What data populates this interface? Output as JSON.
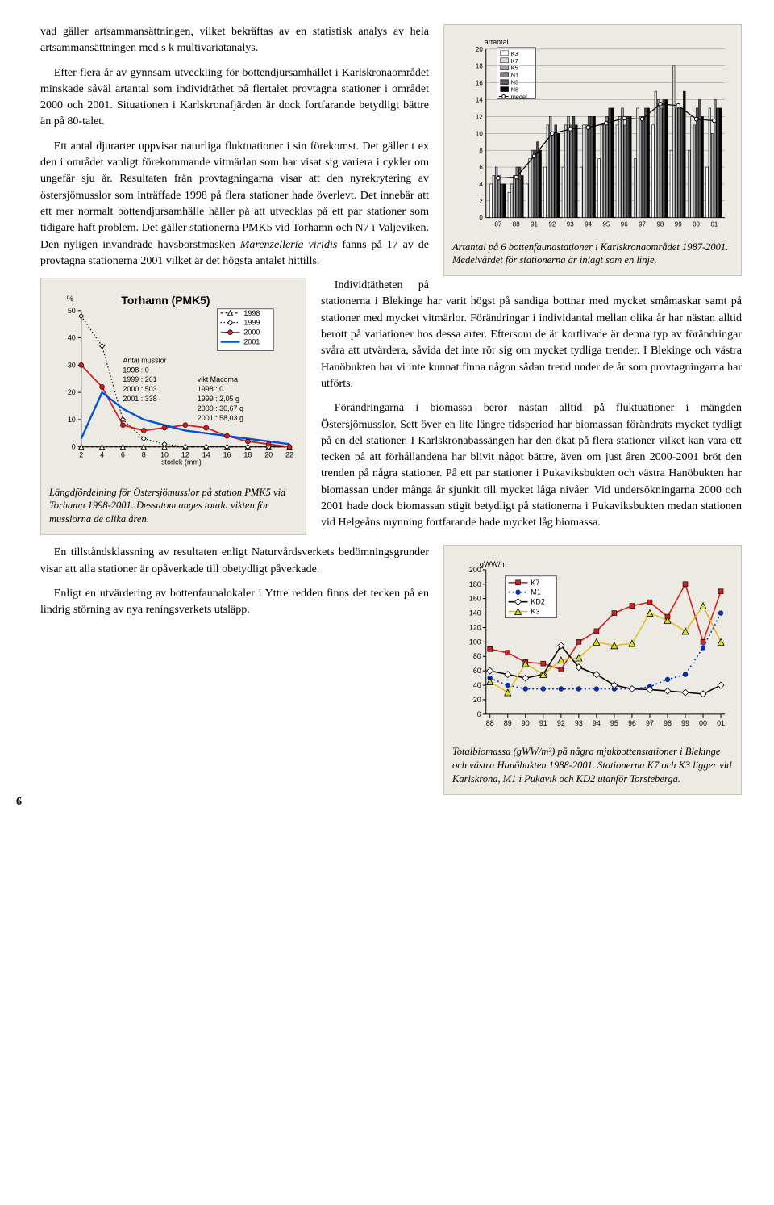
{
  "page_number": "6",
  "paragraphs": {
    "p1": "vad gäller artsammansättningen, vilket bekräftas av en statistisk analys av hela artsammansättningen med s k multivariatanalys.",
    "p2": "Efter flera år av gynnsam utveckling för bottendjursamhället i Karlskronaområdet minskade såväl artantal som individtäthet på flertalet provtagna stationer i området 2000 och 2001. Situationen i Karlskronafjärden är dock fortfarande betydligt bättre än på 80-talet.",
    "p3a": "Ett antal djurarter uppvisar naturliga fluktuationer i sin förekomst. Det gäller t ex den i området vanligt förekommande vitmärlan som har visat sig variera i cykler om ungefär sju år. Resultaten från provtagningarna visar att den nyrekrytering av östersjömusslor som inträffade 1998 på flera stationer hade överlevt. Det innebär att ett mer normalt bottendjursamhälle håller på att utvecklas på ett par stationer som tidigare haft problem. Det gäller stationerna PMK5 vid Torhamn och N7 i Valjeviken. Den nyligen invandrade havsborstmasken ",
    "p3b": " fanns på 17 av de provtagna stationerna 2001 vilket är det högsta antalet hittills.",
    "p3_species": "Marenzelleria viridis",
    "p4": "Individtätheten på stationerna i Blekinge har varit högst på sandiga bottnar med mycket småmaskar samt på stationer med mycket vitmärlor. Förändringar i individantal mellan olika år har nästan alltid berott på variationer hos dessa arter. Eftersom de är kortlivade är denna typ av förändringar svåra att utvärdera, såvida det inte rör sig om mycket tydliga trender. I Blekinge och västra Hanöbukten har vi inte kunnat finna någon sådan trend under de år som provtagningarna har utförts.",
    "p5": "Förändringarna i biomassa beror nästan alltid på fluktuationer i mängden Östersjömusslor. Sett över en lite längre tidsperiod har biomassan förändrats mycket tydligt på en del stationer. I Karlskronabassängen har den ökat på flera stationer vilket kan vara ett tecken på att förhållandena har blivit något bättre, även om just åren 2000-2001 bröt den trenden på några stationer. På ett par stationer i Pukaviksbukten och västra Hanöbukten har biomassan under många år sjunkit till mycket låga nivåer. Vid undersökningarna 2000 och 2001 hade dock biomassan stigit betydligt på stationerna i Pukaviksbukten medan stationen vid Helgeåns mynning fortfarande hade mycket låg biomassa.",
    "p6": "En tillståndsklassning av resultaten enligt Naturvårdsverkets bedömningsgrunder visar att alla stationer är opåverkade till obetydligt påverkade.",
    "p7": "Enligt en utvärdering av bottenfaunalokaler i Yttre redden finns det tecken på en lindrig störning av nya reningsverkets utsläpp."
  },
  "chart1": {
    "caption": "Artantal på 6 bottenfaunastationer i Karlskronaområdet 1987-2001. Medelvärdet för stationerna är inlagt som en linje.",
    "type": "bar",
    "ytitle": "artantal",
    "ymax": 20,
    "ytick_step": 2,
    "ymin": 0,
    "years": [
      "87",
      "88",
      "91",
      "92",
      "93",
      "94",
      "95",
      "96",
      "97",
      "98",
      "99",
      "00",
      "01"
    ],
    "series": [
      "K3",
      "K7",
      "K5",
      "N1",
      "N3",
      "N8"
    ],
    "colors": {
      "K3": "#ffffff",
      "K7": "#d8d8d8",
      "K5": "#a8a8a8",
      "N1": "#808080",
      "N3": "#505050",
      "N8": "#000000"
    },
    "legend_mean": "medel",
    "data": {
      "K3": [
        4,
        3,
        4,
        6,
        6,
        6,
        7,
        11,
        7,
        11,
        8,
        8,
        6
      ],
      "K7": [
        5,
        4,
        7,
        11,
        11,
        11,
        11,
        12,
        13,
        15,
        18,
        12,
        13
      ],
      "K5": [
        6,
        5,
        8,
        12,
        12,
        11,
        11,
        13,
        12,
        14,
        13,
        11,
        10
      ],
      "N1": [
        5,
        6,
        8,
        10,
        11,
        12,
        12,
        11,
        12,
        13,
        13,
        13,
        14
      ],
      "N3": [
        4,
        6,
        9,
        11,
        12,
        12,
        13,
        12,
        13,
        14,
        13,
        14,
        13
      ],
      "N8": [
        4,
        5,
        8,
        10,
        11,
        12,
        13,
        12,
        13,
        14,
        15,
        12,
        13
      ]
    },
    "mean": [
      4.7,
      4.8,
      7.3,
      10.0,
      10.5,
      10.7,
      11.2,
      11.8,
      11.7,
      13.5,
      13.3,
      11.7,
      11.5
    ],
    "background": "#edeae4"
  },
  "chart2": {
    "caption": "Längdfördelning för Östersjömusslor på station PMK5 vid Torhamn 1998-2001. Dessutom anges totala vikten för musslorna de olika åren.",
    "title": "Torhamn (PMK5)",
    "type": "line",
    "xlabel": "storlek (mm)",
    "ylabel": "%",
    "x": [
      2,
      4,
      6,
      8,
      10,
      12,
      14,
      16,
      18,
      20,
      22
    ],
    "ymin": 0,
    "ymax": 50,
    "ytick_step": 10,
    "legend": [
      "1998",
      "1999",
      "2000",
      "2001"
    ],
    "info_col1_title": "Antal musslor",
    "info_col1": [
      "1998 : 0",
      "1999 : 261",
      "2000 : 503",
      "2001 : 338"
    ],
    "info_col2_title": "vikt Macoma",
    "info_col2": [
      "1998 : 0",
      "1999 : 2,05 g",
      "2000 : 30,67 g",
      "2001 : 58,03 g"
    ],
    "series": {
      "1998": [
        0,
        0,
        0,
        0,
        0,
        0,
        0,
        0,
        0,
        0,
        0
      ],
      "1999": [
        48,
        37,
        10,
        3,
        1,
        0,
        0,
        0,
        0,
        0,
        0
      ],
      "2000": [
        30,
        22,
        8,
        6,
        7,
        8,
        7,
        4,
        2,
        1,
        0
      ],
      "2001": [
        3,
        20,
        14,
        10,
        8,
        6,
        5,
        4,
        3,
        2,
        1
      ]
    },
    "colors": {
      "1998": "#000000",
      "1999": "#000000",
      "2000": "#d02020",
      "2001": "#0052d6"
    }
  },
  "chart3": {
    "caption": "Totalbiomassa (gWW/m²) på några mjukbottenstationer i Blekinge och västra Hanöbukten 1988-2001. Stationerna K7 och K3 ligger vid Karlskrona, M1 i Pukavik och KD2 utanför Torsteberga.",
    "type": "line",
    "ytitle": "gWW/m",
    "years": [
      "88",
      "89",
      "90",
      "91",
      "92",
      "93",
      "94",
      "95",
      "96",
      "97",
      "98",
      "99",
      "00",
      "01"
    ],
    "ymin": 0,
    "ymax": 200,
    "ytick_step": 20,
    "series": [
      "K7",
      "M1",
      "KD2",
      "K3"
    ],
    "colors": {
      "K7": "#d02020",
      "M1": "#0030c0",
      "KD2": "#000000",
      "K3": "#e0c020"
    },
    "markers": {
      "K7": "square",
      "M1": "circle",
      "KD2": "diamond",
      "K3": "triangle"
    },
    "data": {
      "K7": [
        90,
        85,
        72,
        70,
        62,
        100,
        115,
        140,
        150,
        155,
        135,
        180,
        100,
        170
      ],
      "M1": [
        50,
        40,
        35,
        35,
        35,
        35,
        35,
        35,
        35,
        38,
        48,
        55,
        92,
        140
      ],
      "KD2": [
        60,
        55,
        50,
        55,
        95,
        65,
        55,
        40,
        35,
        34,
        32,
        30,
        28,
        40
      ],
      "K3": [
        45,
        30,
        70,
        55,
        75,
        78,
        100,
        95,
        98,
        140,
        130,
        115,
        150,
        100
      ]
    }
  }
}
